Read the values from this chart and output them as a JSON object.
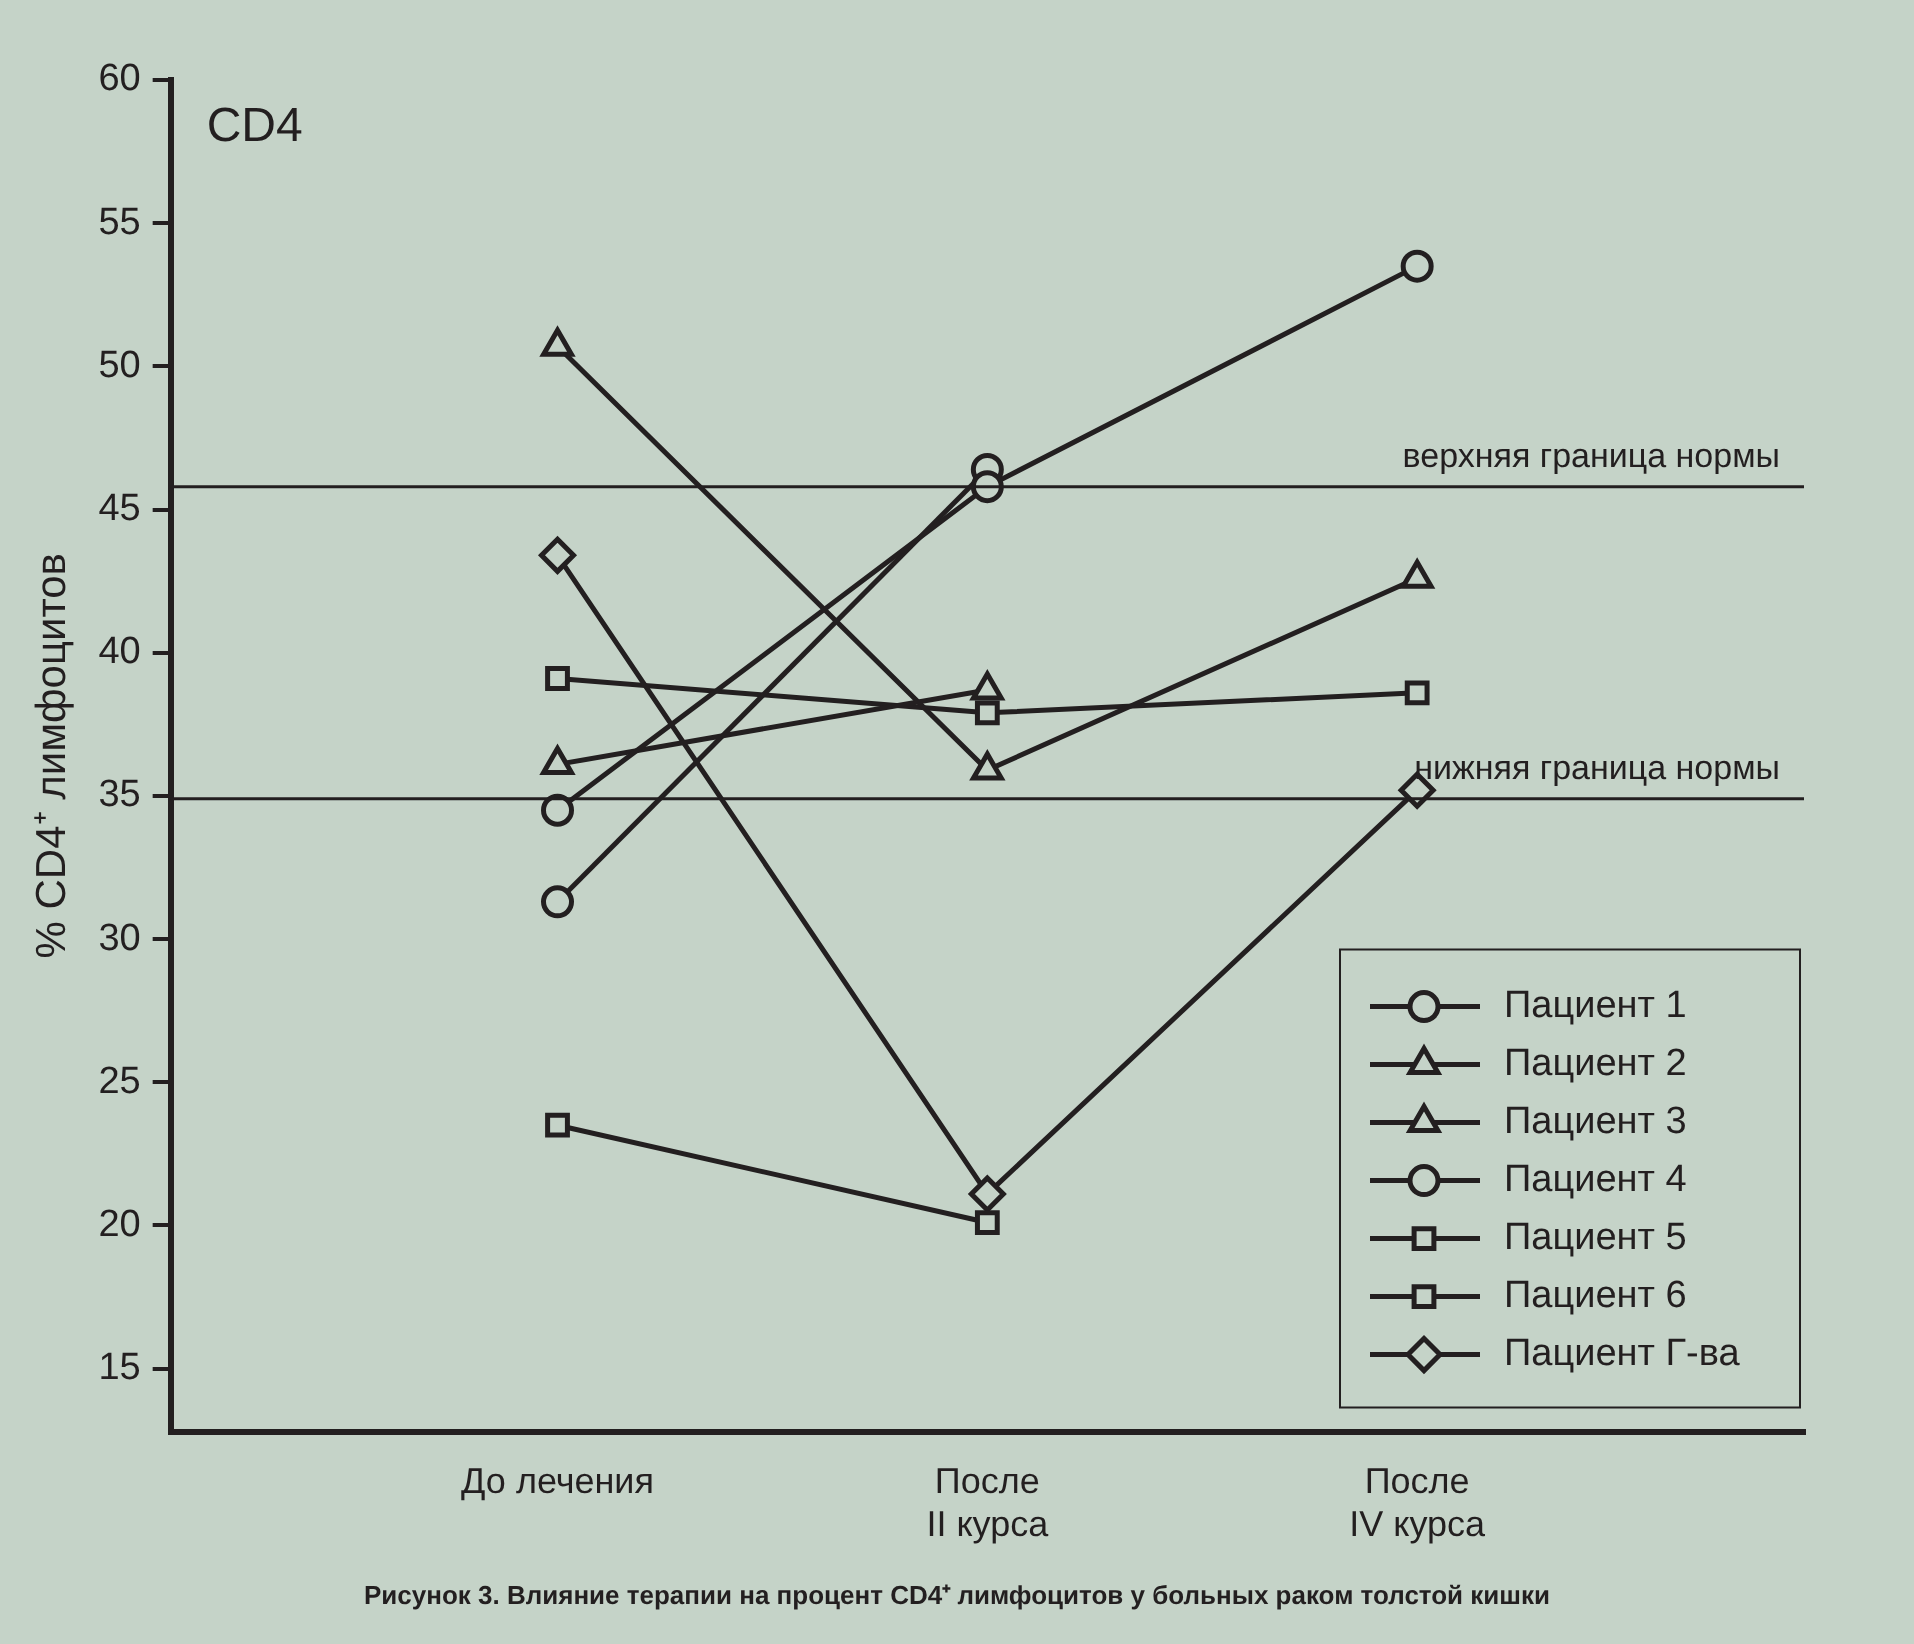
{
  "chart_data": {
    "type": "line",
    "title": "CD4",
    "ylabel": "% CD4⁺ лимфоцитов",
    "categories": [
      "До лечения",
      "После\nII курса",
      "После\nIV курса"
    ],
    "series": [
      {
        "name": "Пациент 1",
        "color": "#231f20",
        "marker": "circle",
        "values": [
          34.5,
          45.8,
          53.5
        ]
      },
      {
        "name": "Пациент 2",
        "color": "#231f20",
        "marker": "triangle",
        "values": [
          36.1,
          38.7,
          null
        ]
      },
      {
        "name": "Пациент 3",
        "color": "#231f20",
        "marker": "triangle",
        "values": [
          50.7,
          35.9,
          42.6
        ]
      },
      {
        "name": "Пациент 4",
        "color": "#231f20",
        "marker": "circle",
        "values": [
          31.3,
          46.4,
          null
        ]
      },
      {
        "name": "Пациент 5",
        "color": "#231f20",
        "marker": "square",
        "values": [
          39.1,
          37.9,
          38.6
        ]
      },
      {
        "name": "Пациент 6",
        "color": "#231f20",
        "marker": "square",
        "values": [
          23.5,
          20.1,
          null
        ]
      },
      {
        "name": "Пациент Г-ва",
        "color": "#231f20",
        "marker": "diamond",
        "values": [
          43.4,
          21.1,
          35.2
        ]
      }
    ],
    "ylim": [
      12.8,
      60
    ],
    "yticks": [
      15,
      20,
      25,
      30,
      35,
      40,
      45,
      50,
      55,
      60
    ],
    "ref_lines": [
      {
        "axis": "y",
        "value": 45.8,
        "label": "верхняя граница нормы",
        "color": "#231f20"
      },
      {
        "axis": "y",
        "value": 34.9,
        "label": "нижняя граница нормы",
        "color": "#231f20"
      }
    ],
    "legend": "bottom right",
    "grid": false,
    "line_style": "solid",
    "annotations": [
      "Рисунок 3. Влияние терапии на процент CD4⁺ лимфоцитов у больных раком толстой кишки"
    ]
  }
}
